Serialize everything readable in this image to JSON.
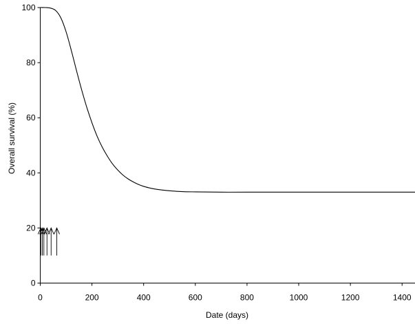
{
  "chart_data": {
    "type": "line",
    "title": "",
    "xlabel": "Date (days)",
    "ylabel": "Overall survival (%)",
    "xlim": [
      0,
      1450
    ],
    "ylim": [
      0,
      100
    ],
    "xticks": [
      0,
      200,
      400,
      600,
      800,
      1000,
      1200,
      1400
    ],
    "yticks": [
      0,
      20,
      40,
      60,
      80,
      100
    ],
    "grid": false,
    "legend": "none",
    "line_color": "#000000",
    "series": [
      {
        "x": [
          0,
          20,
          40,
          60,
          80,
          100,
          120,
          140,
          160,
          180,
          200,
          220,
          240,
          260,
          280,
          300,
          320,
          340,
          360,
          380,
          400,
          420,
          440,
          460,
          480,
          500,
          550,
          600,
          700,
          800,
          1000,
          1200,
          1450
        ],
        "y": [
          100,
          100,
          99.8,
          98.9,
          96.2,
          91.2,
          84.5,
          77.2,
          70.2,
          63.8,
          58.2,
          53.3,
          49.3,
          46.0,
          43.2,
          41.0,
          39.2,
          37.8,
          36.7,
          35.8,
          35.1,
          34.6,
          34.2,
          33.9,
          33.7,
          33.5,
          33.2,
          33.1,
          33,
          33,
          33,
          33,
          33
        ]
      }
    ],
    "arrows": {
      "x": [
        2,
        8,
        14,
        26,
        42,
        64
      ],
      "y_top": 20,
      "y_bottom": 10
    }
  }
}
